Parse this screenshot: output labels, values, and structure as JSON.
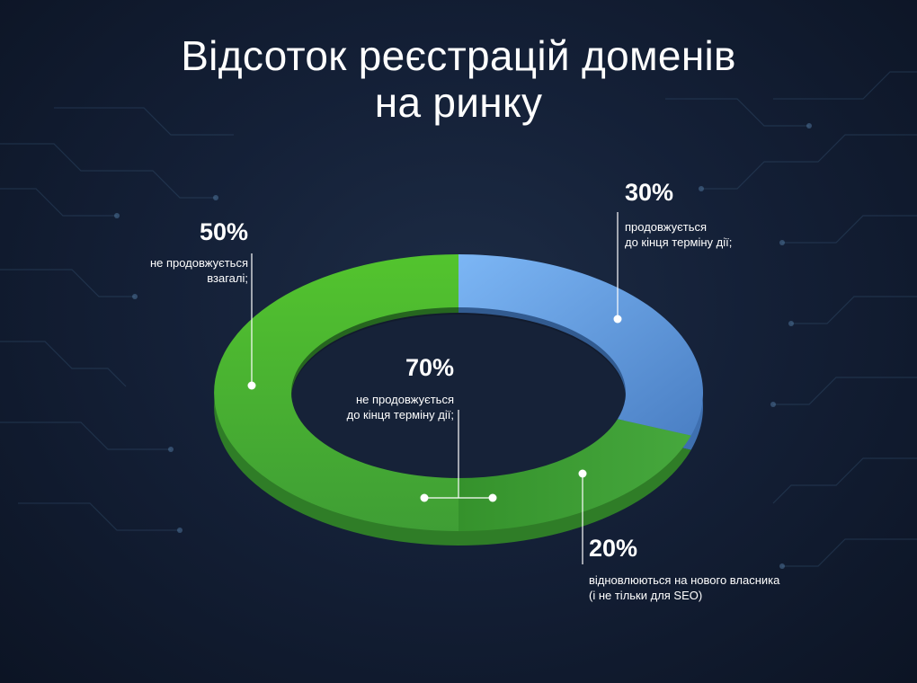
{
  "title": {
    "line1": "Відсоток реєстрацій доменів",
    "line2": "на ринку"
  },
  "colors": {
    "green": "#4fb83a",
    "green_dark": "#2f7d27",
    "blue": "#6aa7ec",
    "blue_dark": "#3e6fb0",
    "text": "#ffffff"
  },
  "labels": {
    "outer_not_renewed": {
      "percent": "50%",
      "line1": "не продовжується",
      "line2": "взагалі;"
    },
    "renewed_to_end": {
      "percent": "30%",
      "line1": "продовжується",
      "line2": "до кінця терміну дії;"
    },
    "renewed_by_new_owner": {
      "percent": "20%",
      "line1": "відновлюються на нового власника",
      "line2": "(і не тільки для SEO)"
    },
    "not_renewed_to_end": {
      "percent": "70%",
      "line1": "не продовжується",
      "line2": "до кінця терміну дії;"
    }
  },
  "chart_data": {
    "type": "pie",
    "title": "Відсоток реєстрацій доменів на ринку",
    "donut": true,
    "slices": [
      {
        "label": "продовжується до кінця терміну дії;",
        "value": 30,
        "color": "#6aa7ec"
      },
      {
        "label": "відновлюються на нового власника (і не тільки для SEO)",
        "value": 20,
        "color": "#3f9e35"
      },
      {
        "label": "не продовжується взагалі;",
        "value": 50,
        "color": "#4fb83a"
      }
    ],
    "annotations": [
      {
        "label": "не продовжується до кінця терміну дії;",
        "value": 70,
        "spans": [
          "відновлюються на нового власника (і не тільки для SEO)",
          "не продовжується взагалі;"
        ]
      }
    ]
  }
}
